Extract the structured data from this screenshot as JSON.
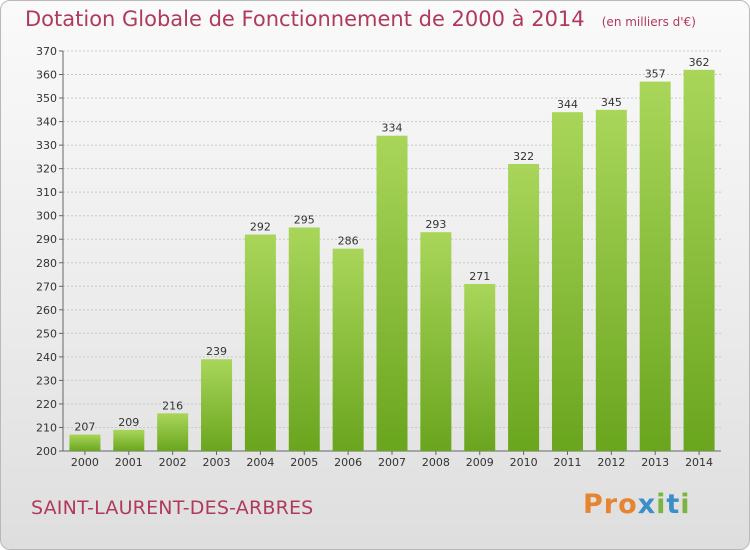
{
  "header": {
    "title": "Dotation Globale de Fonctionnement de 2000 à 2014",
    "unit": "(en milliers d'€)"
  },
  "footer": {
    "city": "SAINT-LAURENT-DES-ARBRES",
    "brand": "Proxiti"
  },
  "colors": {
    "title": "#b03a5b",
    "bar_light": "#a9d65a",
    "bar_dark": "#6aa51e",
    "grid": "#c8c8c8"
  },
  "chart_data": {
    "type": "bar",
    "title": "Dotation Globale de Fonctionnement de 2000 à 2014",
    "subtitle": "(en milliers d'€)",
    "xlabel": "",
    "ylabel": "",
    "categories": [
      "2000",
      "2001",
      "2002",
      "2003",
      "2004",
      "2005",
      "2006",
      "2007",
      "2008",
      "2009",
      "2010",
      "2011",
      "2012",
      "2013",
      "2014"
    ],
    "values": [
      207,
      209,
      216,
      239,
      292,
      295,
      286,
      334,
      293,
      271,
      322,
      344,
      345,
      357,
      362
    ],
    "ylim": [
      200,
      370
    ],
    "yticks": [
      200,
      210,
      220,
      230,
      240,
      250,
      260,
      270,
      280,
      290,
      300,
      310,
      320,
      330,
      340,
      350,
      360,
      370
    ],
    "grid": true,
    "legend": "none"
  }
}
